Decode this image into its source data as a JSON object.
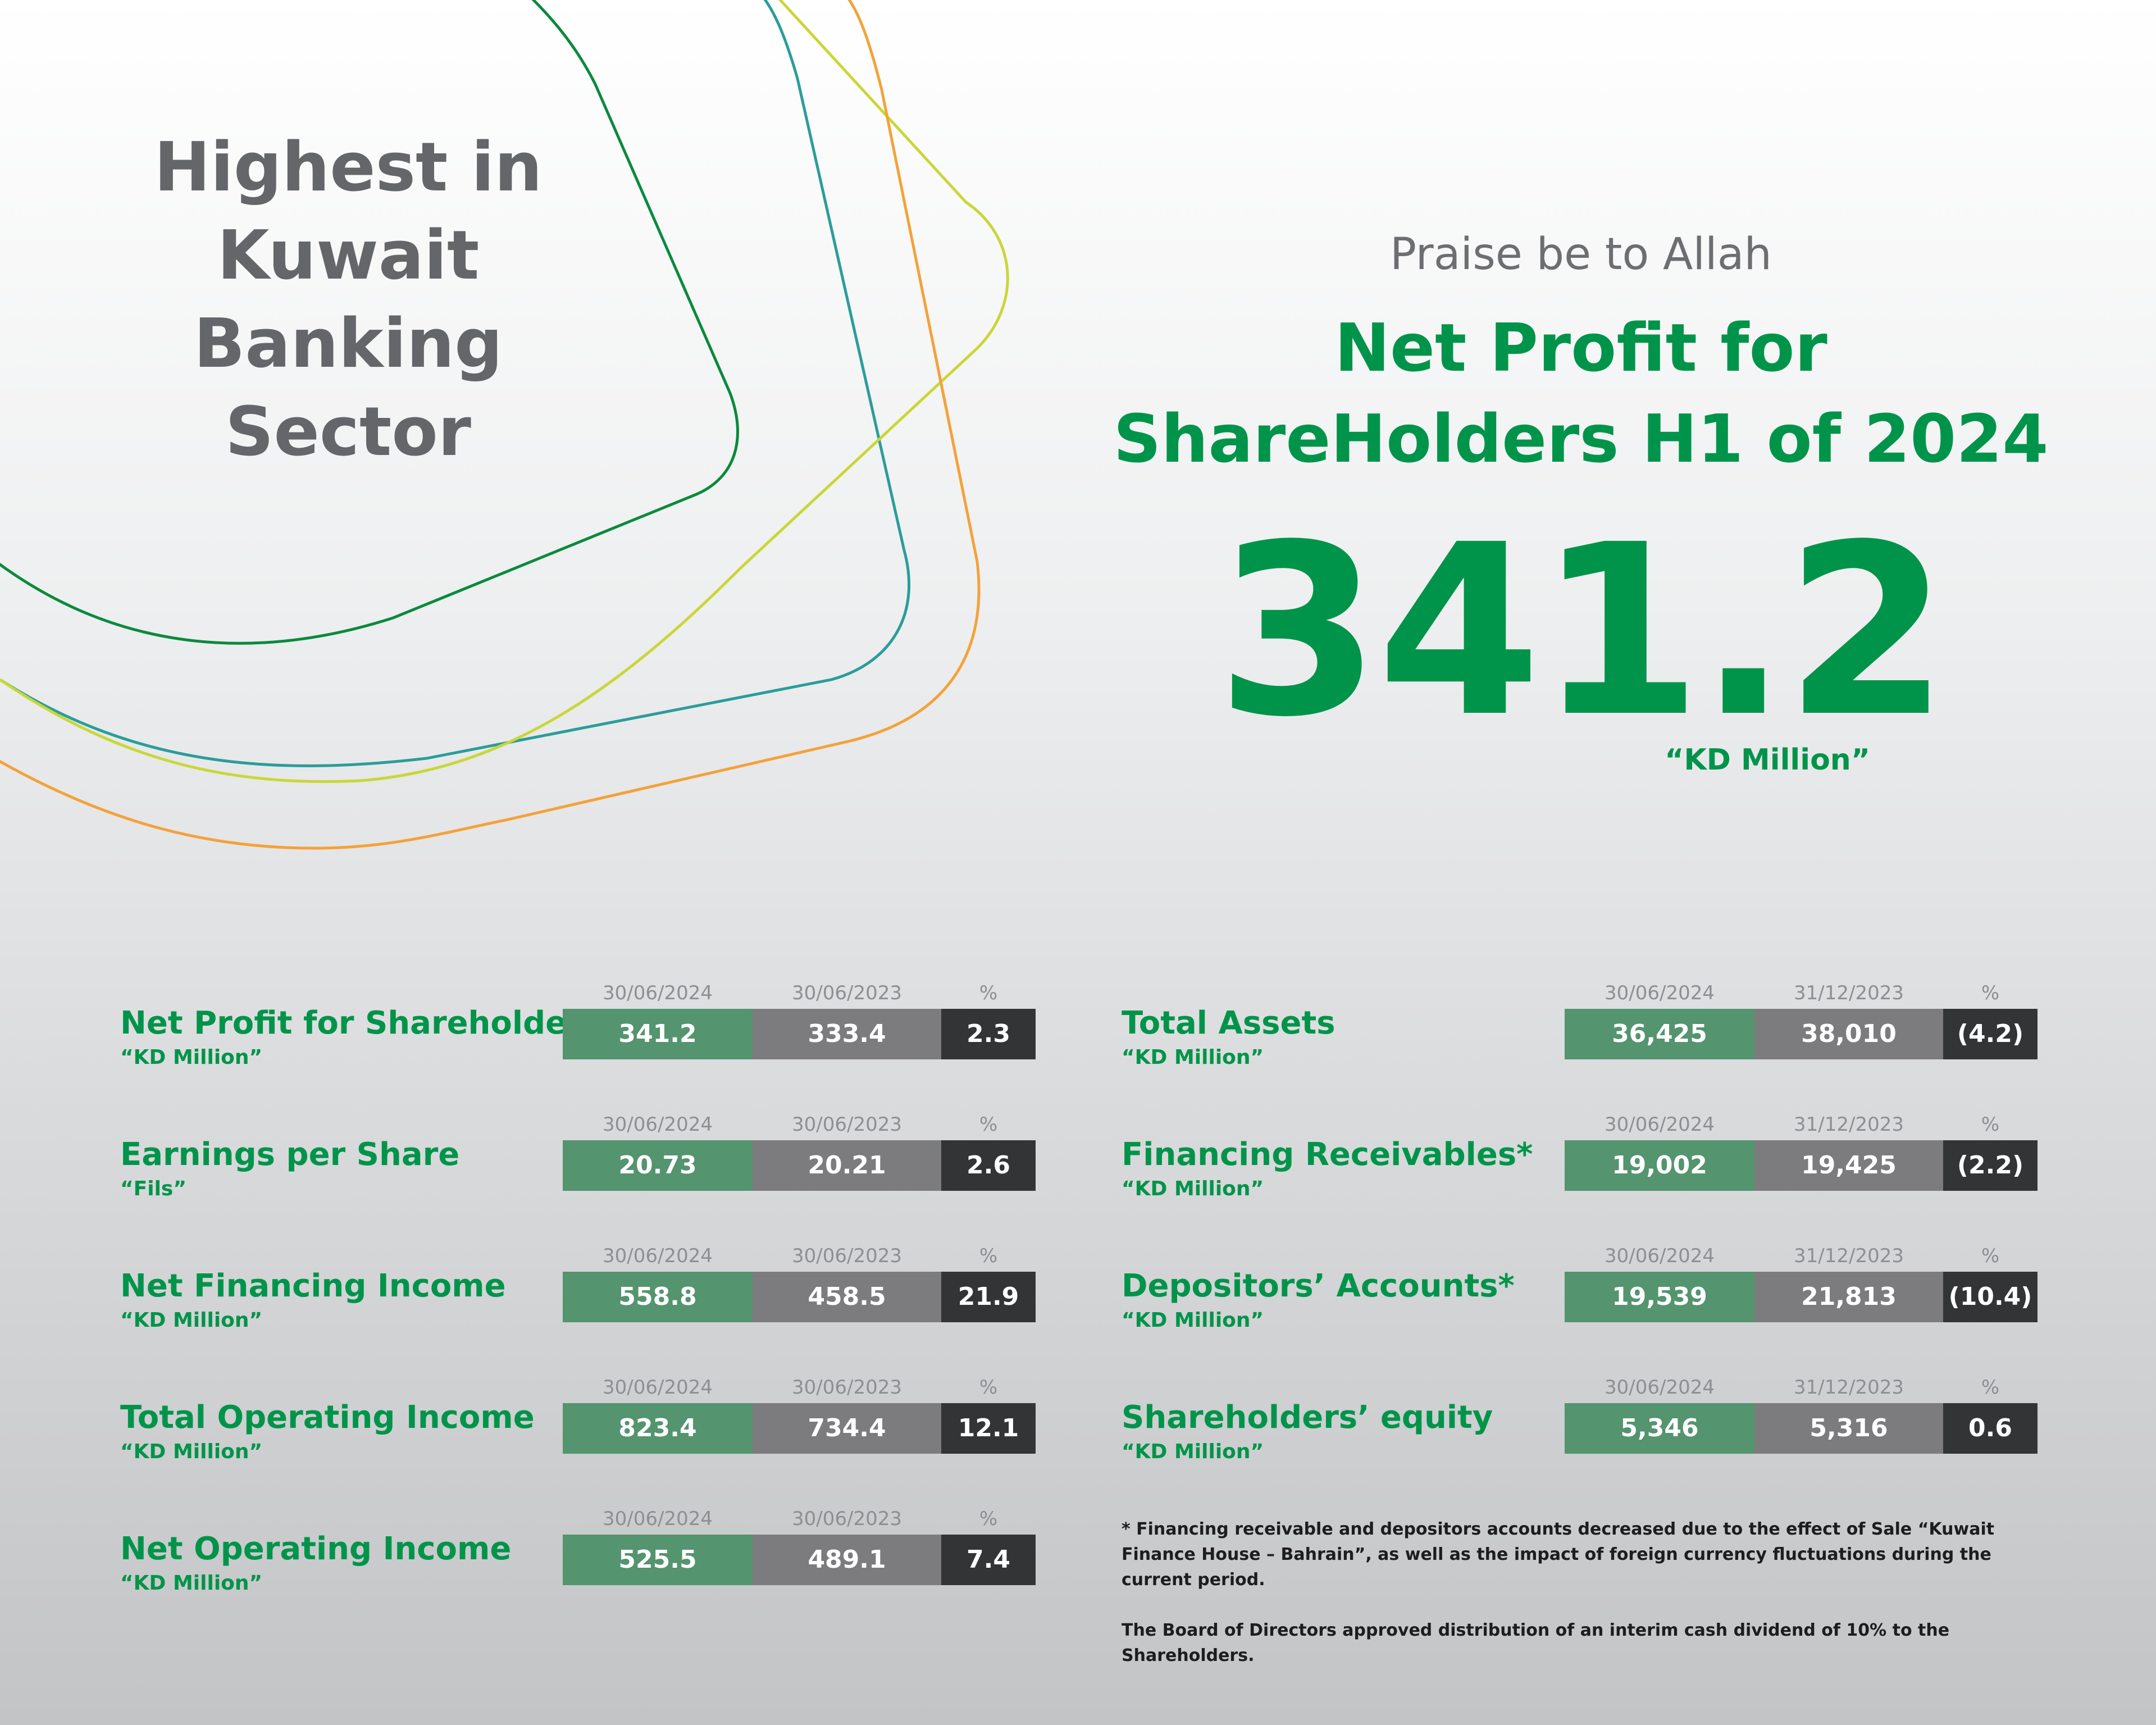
{
  "headline": [
    "Highest in",
    "Kuwait",
    "Banking",
    "Sector"
  ],
  "praise": "Praise be to Allah",
  "net_profit_title": [
    "Net Profit for",
    "ShareHolders H1 of 2024"
  ],
  "big_value": "341.2",
  "big_unit": "“KD Million”",
  "colors": {
    "brand_green": "#00944a",
    "cell_green": "#54946e",
    "cell_gray": "#7c7c7e",
    "cell_dark": "#333436",
    "headline_gray": "#65666a",
    "curve_dark_green": "#0a8a3c",
    "curve_teal": "#2a9d9a",
    "curve_yellow_green": "#c9d738",
    "curve_orange": "#f3a23a"
  },
  "left_metrics": [
    {
      "label": "Net Profit for Shareholders",
      "unit": "“KD Million”",
      "col1": "30/06/2024",
      "col2": "30/06/2023",
      "col3": "%",
      "v1": "341.2",
      "v2": "333.4",
      "pct": "2.3"
    },
    {
      "label": "Earnings per Share",
      "unit": "“Fils”",
      "col1": "30/06/2024",
      "col2": "30/06/2023",
      "col3": "%",
      "v1": "20.73",
      "v2": "20.21",
      "pct": "2.6"
    },
    {
      "label": "Net Financing Income",
      "unit": "“KD Million”",
      "col1": "30/06/2024",
      "col2": "30/06/2023",
      "col3": "%",
      "v1": "558.8",
      "v2": "458.5",
      "pct": "21.9"
    },
    {
      "label": "Total Operating Income",
      "unit": "“KD Million”",
      "col1": "30/06/2024",
      "col2": "30/06/2023",
      "col3": "%",
      "v1": "823.4",
      "v2": "734.4",
      "pct": "12.1"
    },
    {
      "label": "Net Operating Income",
      "unit": "“KD Million”",
      "col1": "30/06/2024",
      "col2": "30/06/2023",
      "col3": "%",
      "v1": "525.5",
      "v2": "489.1",
      "pct": "7.4"
    }
  ],
  "right_metrics": [
    {
      "label": "Total Assets",
      "unit": "“KD Million”",
      "col1": "30/06/2024",
      "col2": "31/12/2023",
      "col3": "%",
      "v1": "36,425",
      "v2": "38,010",
      "pct": "(4.2)"
    },
    {
      "label": "Financing Receivables*",
      "unit": "“KD Million”",
      "col1": "30/06/2024",
      "col2": "31/12/2023",
      "col3": "%",
      "v1": "19,002",
      "v2": "19,425",
      "pct": "(2.2)"
    },
    {
      "label": "Depositors’ Accounts*",
      "unit": "“KD Million”",
      "col1": "30/06/2024",
      "col2": "31/12/2023",
      "col3": "%",
      "v1": "19,539",
      "v2": "21,813",
      "pct": "(10.4)"
    },
    {
      "label": "Shareholders’ equity",
      "unit": "“KD Million”",
      "col1": "30/06/2024",
      "col2": "31/12/2023",
      "col3": "%",
      "v1": "5,346",
      "v2": "5,316",
      "pct": "0.6"
    }
  ],
  "footnotes": [
    "* Financing receivable and depositors accounts decreased due to the effect of Sale “Kuwait Finance House – Bahrain”, as well as the impact of foreign currency fluctuations during the current period.",
    "The Board of Directors approved distribution of an interim cash dividend of 10% to the Shareholders."
  ]
}
